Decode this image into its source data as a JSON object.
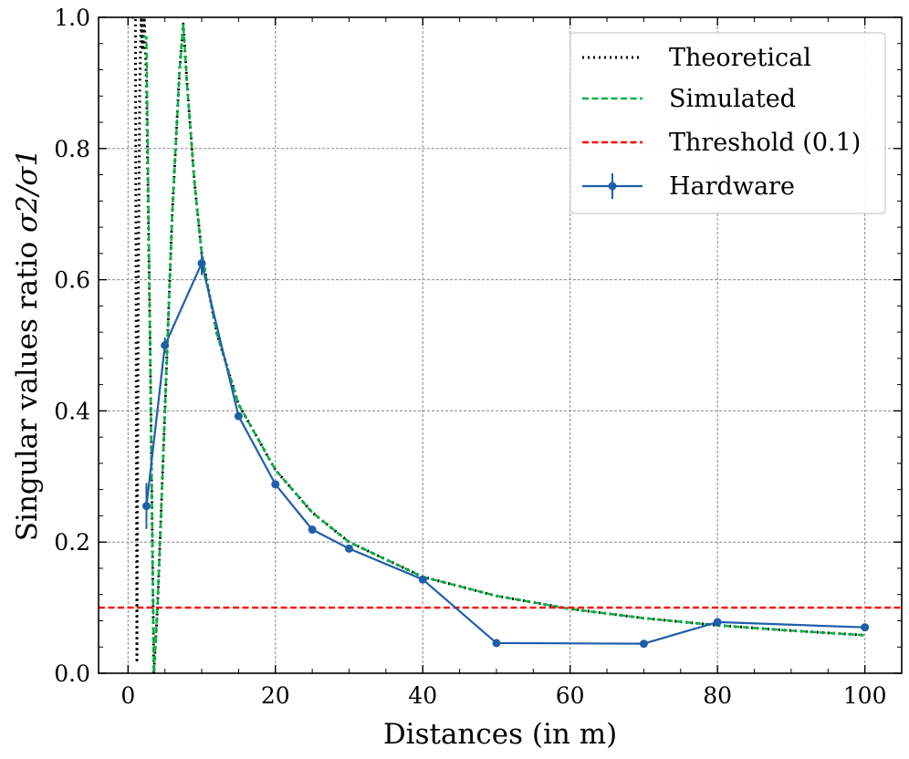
{
  "chart_data": {
    "type": "line",
    "title": "",
    "xlabel": "Distances (in m)",
    "ylabel_text": "Singular values ratio ",
    "ylabel_math": "σ2/σ1",
    "xlim": [
      -4,
      105
    ],
    "ylim": [
      0,
      1
    ],
    "xticks": [
      0,
      20,
      40,
      60,
      80,
      100
    ],
    "xtick_labels": [
      "0",
      "20",
      "40",
      "60",
      "80",
      "100"
    ],
    "yticks": [
      0,
      0.2,
      0.4,
      0.6,
      0.8,
      1.0
    ],
    "ytick_labels": [
      "0.0",
      "0.2",
      "0.4",
      "0.6",
      "0.8",
      "1.0"
    ],
    "grid": true,
    "legend_position": "top-right",
    "series": [
      {
        "name": "Theoretical",
        "style": "dotted",
        "color": "#000000",
        "x": [
          0.5,
          1.0,
          1.2,
          1.4,
          1.6,
          1.8,
          2.0,
          2.2,
          2.5,
          3.0,
          3.5,
          4,
          5,
          6,
          7,
          7.5,
          8,
          9,
          10,
          12,
          15,
          20,
          25,
          30,
          40,
          50,
          60,
          70,
          80,
          90,
          100
        ],
        "y": [
          1.0,
          1.0,
          0.02,
          0.6,
          0.9,
          1.0,
          0.95,
          1.0,
          0.9,
          0.5,
          0.0,
          0.1,
          0.4,
          0.7,
          0.92,
          0.99,
          0.9,
          0.75,
          0.64,
          0.52,
          0.41,
          0.31,
          0.245,
          0.2,
          0.147,
          0.118,
          0.098,
          0.084,
          0.073,
          0.065,
          0.058
        ]
      },
      {
        "name": "Simulated",
        "style": "dashed",
        "color": "#00b140",
        "x": [
          2.0,
          2.5,
          3.0,
          3.5,
          4,
          5,
          6,
          7,
          7.5,
          8,
          9,
          10,
          12,
          15,
          20,
          25,
          30,
          40,
          50,
          60,
          70,
          80,
          90,
          100
        ],
        "y": [
          0.97,
          0.97,
          0.5,
          0.0,
          0.1,
          0.4,
          0.7,
          0.92,
          0.99,
          0.9,
          0.75,
          0.64,
          0.52,
          0.41,
          0.31,
          0.245,
          0.2,
          0.147,
          0.118,
          0.098,
          0.084,
          0.073,
          0.065,
          0.058
        ]
      },
      {
        "name": "Threshold (0.1)",
        "style": "dashed",
        "color": "#ff0000",
        "x": [
          -4,
          105
        ],
        "y": [
          0.1,
          0.1
        ]
      },
      {
        "name": "Hardware",
        "style": "solid-markers",
        "color": "#1f5faa",
        "x": [
          2.5,
          5,
          10,
          15,
          20,
          25,
          30,
          40,
          50,
          70,
          80,
          100
        ],
        "y": [
          0.255,
          0.5,
          0.625,
          0.392,
          0.288,
          0.219,
          0.19,
          0.143,
          0.046,
          0.045,
          0.078,
          0.07
        ],
        "yerr": [
          0.035,
          0.012,
          0.018,
          0.006,
          0.005,
          0.004,
          0.004,
          0.004,
          0.003,
          0.003,
          0.003,
          0.003
        ]
      }
    ]
  }
}
